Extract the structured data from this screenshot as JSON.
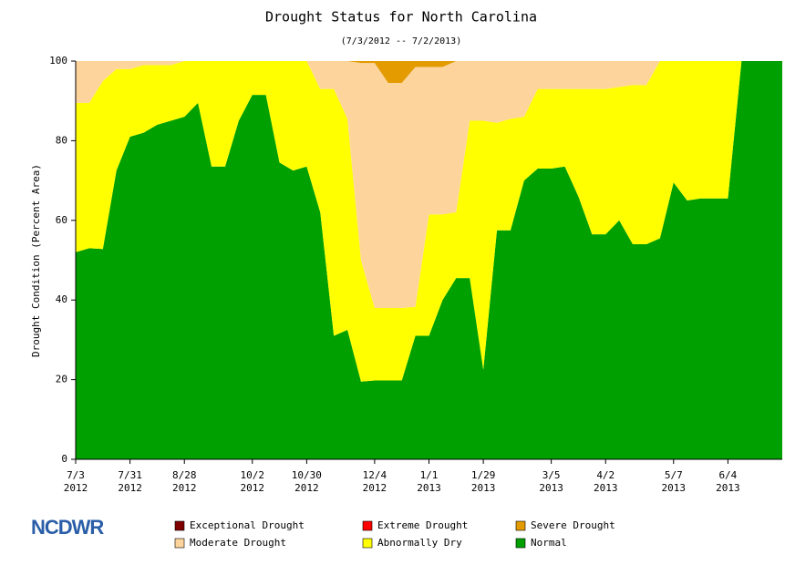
{
  "logo": "NCDWR",
  "chart_data": {
    "type": "stacked_area",
    "title": "Drought Status for North Carolina",
    "subtitle": "(7/3/2012 -- 7/2/2013)",
    "y_label": "Drought Condition (Percent Area)",
    "categories": [
      "7/3\n2012",
      null,
      null,
      null,
      "7/31\n2012",
      null,
      null,
      null,
      "8/28\n2012",
      null,
      null,
      null,
      null,
      "10/2\n2012",
      null,
      null,
      null,
      "10/30\n2012",
      null,
      null,
      null,
      null,
      "12/4\n2012",
      null,
      null,
      null,
      "1/1\n2013",
      null,
      null,
      null,
      "1/29\n2013",
      null,
      null,
      null,
      null,
      "3/5\n2013",
      null,
      null,
      null,
      "4/2\n2013",
      null,
      null,
      null,
      null,
      "5/7\n2013",
      null,
      null,
      null,
      "6/4\n2013",
      null,
      null,
      null,
      null
    ],
    "ylim": [
      0,
      100
    ],
    "yticks": [
      0,
      20,
      40,
      60,
      80,
      100
    ],
    "series": [
      {
        "name": "Exceptional Drought",
        "color": "#800000",
        "values": [
          0,
          0,
          0,
          0,
          0,
          0,
          0,
          0,
          0,
          0,
          0,
          0,
          0,
          0,
          0,
          0,
          0,
          0,
          0,
          0,
          0,
          0,
          0,
          0,
          0,
          0,
          0,
          0,
          0,
          0,
          0,
          0,
          0,
          0,
          0,
          0,
          0,
          0,
          0,
          0,
          0,
          0,
          0,
          0,
          0,
          0,
          0,
          0,
          0,
          0,
          0,
          0,
          0
        ]
      },
      {
        "name": "Extreme Drought",
        "color": "#ff0000",
        "values": [
          0,
          0,
          0,
          0,
          0,
          0,
          0,
          0,
          0,
          0,
          0,
          0,
          0,
          0,
          0,
          0,
          0,
          0,
          0,
          0,
          0,
          0,
          0,
          0,
          0,
          0,
          0,
          0,
          0,
          0,
          0,
          0,
          0,
          0,
          0,
          0,
          0,
          0,
          0,
          0,
          0,
          0,
          0,
          0,
          0,
          0,
          0,
          0,
          0,
          0,
          0,
          0,
          0
        ]
      },
      {
        "name": "Severe Drought",
        "color": "#e39b00",
        "values": [
          0,
          0,
          0,
          0,
          0,
          0,
          0,
          0,
          0,
          0,
          0,
          0,
          0,
          0,
          0,
          0,
          0,
          0,
          0,
          0,
          0,
          0.5,
          0.5,
          5.5,
          5.5,
          1.5,
          1.5,
          1.5,
          0,
          0,
          0,
          0,
          0,
          0,
          0,
          0,
          0,
          0,
          0,
          0,
          0,
          0,
          0,
          0,
          0,
          0,
          0,
          0,
          0,
          0,
          0,
          0,
          0
        ]
      },
      {
        "name": "Moderate Drought",
        "color": "#fdd49b",
        "values": [
          10.5,
          10.5,
          5,
          2,
          2,
          1,
          1,
          1,
          0,
          0,
          0,
          0,
          0,
          0,
          0,
          0,
          0,
          0,
          7,
          7,
          14.5,
          49.5,
          61.5,
          56.5,
          56.5,
          60.2,
          37,
          37,
          38,
          15,
          15,
          15.5,
          14.5,
          14,
          7,
          7,
          7,
          7,
          7,
          7,
          6.5,
          6,
          6,
          0,
          0,
          0,
          0,
          0,
          0,
          0,
          0,
          0,
          0
        ]
      },
      {
        "name": "Abnormally Dry",
        "color": "#ffff00",
        "values": [
          37.5,
          36.5,
          42.2,
          25.5,
          17,
          17,
          15,
          14,
          14,
          10.5,
          26.5,
          26.5,
          15,
          8.5,
          8.5,
          25.5,
          27.5,
          26.5,
          31,
          62,
          53,
          30.5,
          18.2,
          18.2,
          18.2,
          7.3,
          30.5,
          21.5,
          16.5,
          39.5,
          62.5,
          27,
          28,
          16,
          20,
          20,
          19.5,
          27,
          36.5,
          36.5,
          33.5,
          40,
          40,
          44.5,
          30.5,
          35,
          34.5,
          34.5,
          34.5,
          0,
          0,
          0,
          0
        ]
      },
      {
        "name": "Normal",
        "color": "#00a000",
        "values": [
          52,
          53,
          52.8,
          72.5,
          81,
          82,
          84,
          85,
          86,
          89.5,
          73.5,
          73.5,
          85,
          91.5,
          91.5,
          74.5,
          72.5,
          73.5,
          62,
          31,
          32.5,
          19.5,
          19.8,
          19.8,
          19.8,
          31,
          31,
          40,
          45.5,
          45.5,
          22.5,
          57.5,
          57.5,
          70,
          73,
          73,
          73.5,
          66,
          56.5,
          56.5,
          60,
          54,
          54,
          55.5,
          69.5,
          65,
          65.5,
          65.5,
          65.5,
          100,
          100,
          100,
          100
        ]
      }
    ]
  }
}
